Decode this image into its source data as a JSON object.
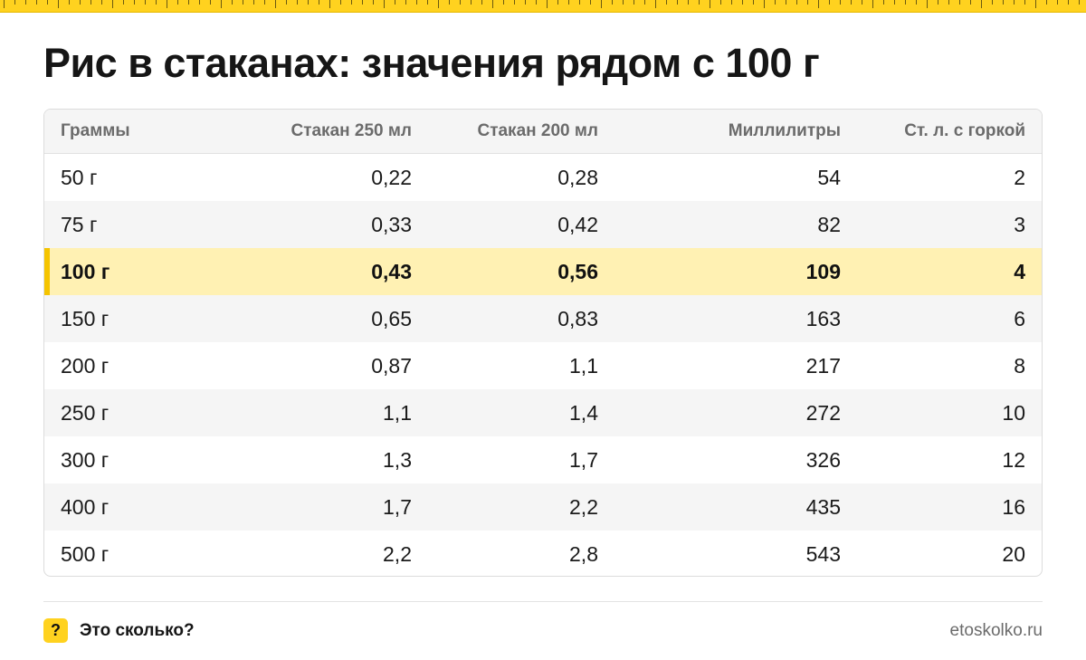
{
  "title": "Рис в стаканах: значения рядом с 100 г",
  "table": {
    "columns": [
      "Граммы",
      "Стакан 250 мл",
      "Стакан 200 мл",
      "Миллилитры",
      "Ст. л. с горкой"
    ],
    "rows": [
      [
        "50 г",
        "0,22",
        "0,28",
        "54",
        "2"
      ],
      [
        "75 г",
        "0,33",
        "0,42",
        "82",
        "3"
      ],
      [
        "100 г",
        "0,43",
        "0,56",
        "109",
        "4"
      ],
      [
        "150 г",
        "0,65",
        "0,83",
        "163",
        "6"
      ],
      [
        "200 г",
        "0,87",
        "1,1",
        "217",
        "8"
      ],
      [
        "250 г",
        "1,1",
        "1,4",
        "272",
        "10"
      ],
      [
        "300 г",
        "1,3",
        "1,7",
        "326",
        "12"
      ],
      [
        "400 г",
        "1,7",
        "2,2",
        "435",
        "16"
      ],
      [
        "500 г",
        "2,2",
        "2,8",
        "543",
        "20"
      ]
    ],
    "highlighted_row": 2
  },
  "footer": {
    "badge": "?",
    "brand": "Это сколько?",
    "site": "etoskolko.ru"
  },
  "colors": {
    "accent": "#FFD21F",
    "highlight_row": "#FFF1B3",
    "highlight_bar": "#F5C400"
  }
}
